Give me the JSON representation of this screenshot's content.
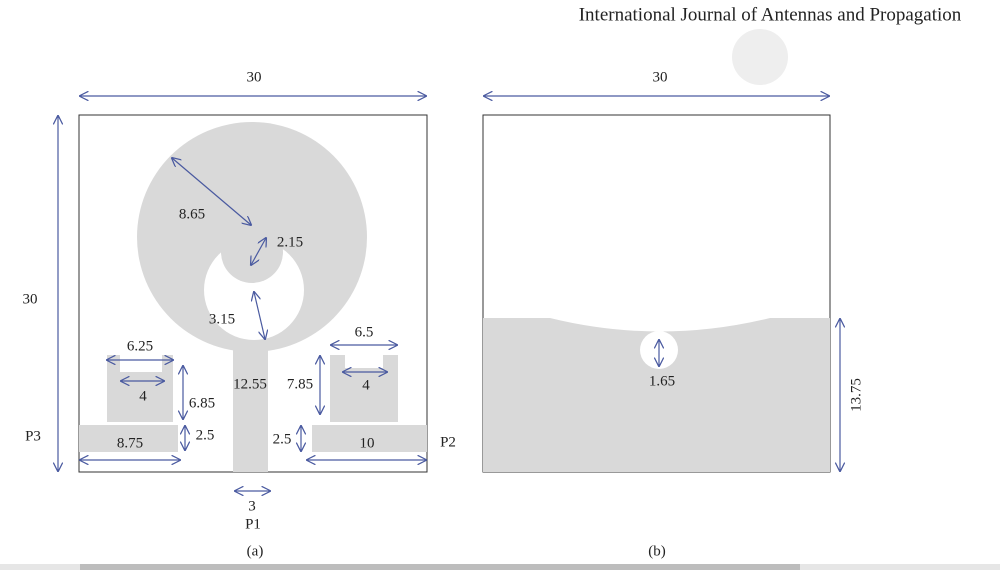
{
  "header": {
    "journal": "International Journal of Antennas and Propagation"
  },
  "panel_a": {
    "width": "30",
    "height": "30",
    "radius_outer": "8.65",
    "radius_inner": "2.15",
    "gap": "3.15",
    "feed_length": "12.55",
    "feed_width": "3",
    "left_top_width": "6.25",
    "left_notch": "4",
    "left_height": "6.85",
    "left_bar_height": "2.5",
    "left_bar_width": "8.75",
    "right_top_width": "6.5",
    "right_notch": "4",
    "right_height": "7.85",
    "right_bar_height": "2.5",
    "right_bar_width": "10",
    "port1": "P1",
    "port2": "P2",
    "port3": "P3",
    "caption": "(a)"
  },
  "panel_b": {
    "width": "30",
    "ground_height": "13.75",
    "slot_diameter": "1.65",
    "caption": "(b)"
  }
}
